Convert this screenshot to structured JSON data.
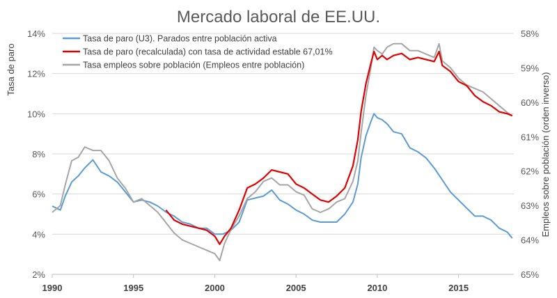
{
  "chart_data": {
    "type": "line",
    "title": "Mercado laboral de EE.UU.",
    "ylabel": "Tasa de paro",
    "y2label": "Empleos sobre población (orden inverso)",
    "xlim": [
      1990,
      2018.4
    ],
    "ylim": [
      2,
      14
    ],
    "y2lim": [
      65,
      58
    ],
    "y2_inverted": true,
    "grid": true,
    "legend_position": "top-left",
    "x_ticks": [
      "1990",
      "1995",
      "2000",
      "2005",
      "2010",
      "2015"
    ],
    "y_ticks": [
      "2%",
      "4%",
      "6%",
      "8%",
      "10%",
      "12%",
      "14%"
    ],
    "y2_ticks": [
      "58%",
      "59%",
      "60%",
      "61%",
      "62%",
      "63%",
      "64%",
      "65%"
    ],
    "series": [
      {
        "name": "Tasa de paro (U3). Parados entre población activa",
        "axis": "left",
        "color": "#5B9BD5",
        "points": [
          [
            1990.0,
            5.4
          ],
          [
            1990.5,
            5.2
          ],
          [
            1990.8,
            5.9
          ],
          [
            1991.2,
            6.6
          ],
          [
            1991.6,
            6.9
          ],
          [
            1992.0,
            7.3
          ],
          [
            1992.5,
            7.7
          ],
          [
            1993.0,
            7.1
          ],
          [
            1993.5,
            6.9
          ],
          [
            1994.0,
            6.6
          ],
          [
            1994.5,
            6.1
          ],
          [
            1995.0,
            5.6
          ],
          [
            1995.5,
            5.7
          ],
          [
            1996.0,
            5.6
          ],
          [
            1996.5,
            5.4
          ],
          [
            1997.0,
            5.1
          ],
          [
            1997.5,
            4.9
          ],
          [
            1998.0,
            4.6
          ],
          [
            1998.5,
            4.5
          ],
          [
            1999.0,
            4.3
          ],
          [
            1999.5,
            4.3
          ],
          [
            2000.0,
            4.0
          ],
          [
            2000.5,
            4.0
          ],
          [
            2001.0,
            4.2
          ],
          [
            2001.5,
            4.6
          ],
          [
            2002.0,
            5.7
          ],
          [
            2002.5,
            5.8
          ],
          [
            2003.0,
            5.9
          ],
          [
            2003.5,
            6.2
          ],
          [
            2004.0,
            5.7
          ],
          [
            2004.5,
            5.5
          ],
          [
            2005.0,
            5.2
          ],
          [
            2005.5,
            5.0
          ],
          [
            2006.0,
            4.7
          ],
          [
            2006.5,
            4.6
          ],
          [
            2007.0,
            4.6
          ],
          [
            2007.5,
            4.6
          ],
          [
            2008.0,
            5.0
          ],
          [
            2008.5,
            5.6
          ],
          [
            2008.8,
            6.5
          ],
          [
            2009.0,
            7.8
          ],
          [
            2009.3,
            8.9
          ],
          [
            2009.6,
            9.6
          ],
          [
            2009.8,
            10.0
          ],
          [
            2010.0,
            9.8
          ],
          [
            2010.3,
            9.7
          ],
          [
            2010.6,
            9.5
          ],
          [
            2011.0,
            9.1
          ],
          [
            2011.5,
            9.0
          ],
          [
            2012.0,
            8.3
          ],
          [
            2012.5,
            8.1
          ],
          [
            2013.0,
            7.8
          ],
          [
            2013.5,
            7.3
          ],
          [
            2014.0,
            6.7
          ],
          [
            2014.5,
            6.1
          ],
          [
            2015.0,
            5.7
          ],
          [
            2015.5,
            5.3
          ],
          [
            2016.0,
            4.9
          ],
          [
            2016.5,
            4.9
          ],
          [
            2017.0,
            4.7
          ],
          [
            2017.5,
            4.3
          ],
          [
            2018.0,
            4.1
          ],
          [
            2018.3,
            3.8
          ]
        ]
      },
      {
        "name": "Tasa de paro (recalculada) con tasa de actividad estable 67,01%",
        "axis": "left",
        "color": "#E00000",
        "points": [
          [
            1997.0,
            5.2
          ],
          [
            1997.5,
            4.7
          ],
          [
            1998.0,
            4.5
          ],
          [
            1998.5,
            4.4
          ],
          [
            1999.0,
            4.3
          ],
          [
            1999.5,
            4.2
          ],
          [
            2000.0,
            3.9
          ],
          [
            2000.3,
            3.5
          ],
          [
            2000.6,
            3.9
          ],
          [
            2001.0,
            4.3
          ],
          [
            2001.5,
            5.2
          ],
          [
            2002.0,
            6.3
          ],
          [
            2002.5,
            6.5
          ],
          [
            2003.0,
            6.8
          ],
          [
            2003.5,
            7.2
          ],
          [
            2004.0,
            7.1
          ],
          [
            2004.5,
            7.0
          ],
          [
            2005.0,
            6.5
          ],
          [
            2005.5,
            6.3
          ],
          [
            2006.0,
            6.0
          ],
          [
            2006.5,
            5.7
          ],
          [
            2007.0,
            5.6
          ],
          [
            2007.5,
            5.9
          ],
          [
            2008.0,
            6.3
          ],
          [
            2008.5,
            7.4
          ],
          [
            2008.8,
            8.7
          ],
          [
            2009.0,
            10.1
          ],
          [
            2009.3,
            11.5
          ],
          [
            2009.6,
            12.5
          ],
          [
            2009.8,
            13.1
          ],
          [
            2010.0,
            12.7
          ],
          [
            2010.3,
            12.9
          ],
          [
            2010.6,
            12.7
          ],
          [
            2011.0,
            12.9
          ],
          [
            2011.5,
            13.0
          ],
          [
            2012.0,
            12.7
          ],
          [
            2012.5,
            12.8
          ],
          [
            2013.0,
            12.7
          ],
          [
            2013.5,
            12.6
          ],
          [
            2013.8,
            13.1
          ],
          [
            2014.0,
            12.4
          ],
          [
            2014.5,
            12.1
          ],
          [
            2015.0,
            11.6
          ],
          [
            2015.5,
            11.4
          ],
          [
            2016.0,
            10.9
          ],
          [
            2016.5,
            10.6
          ],
          [
            2017.0,
            10.4
          ],
          [
            2017.5,
            10.1
          ],
          [
            2018.0,
            10.0
          ],
          [
            2018.3,
            9.9
          ]
        ]
      },
      {
        "name": "Tasa empleos sobre población (Empleos entre población)",
        "axis": "right",
        "color": "#A5A5A5",
        "points": [
          [
            1990.0,
            63.2
          ],
          [
            1990.5,
            63.0
          ],
          [
            1990.8,
            62.4
          ],
          [
            1991.2,
            61.7
          ],
          [
            1991.6,
            61.6
          ],
          [
            1992.0,
            61.3
          ],
          [
            1992.5,
            61.4
          ],
          [
            1993.0,
            61.4
          ],
          [
            1993.5,
            61.7
          ],
          [
            1994.0,
            62.2
          ],
          [
            1994.5,
            62.5
          ],
          [
            1995.0,
            62.9
          ],
          [
            1995.5,
            62.8
          ],
          [
            1996.0,
            63.0
          ],
          [
            1996.5,
            63.2
          ],
          [
            1997.0,
            63.5
          ],
          [
            1997.5,
            63.8
          ],
          [
            1998.0,
            64.0
          ],
          [
            1998.5,
            64.1
          ],
          [
            1999.0,
            64.2
          ],
          [
            1999.5,
            64.3
          ],
          [
            2000.0,
            64.4
          ],
          [
            2000.3,
            64.6
          ],
          [
            2000.6,
            64.1
          ],
          [
            2001.0,
            63.7
          ],
          [
            2001.5,
            63.3
          ],
          [
            2002.0,
            62.8
          ],
          [
            2002.5,
            62.6
          ],
          [
            2003.0,
            62.3
          ],
          [
            2003.5,
            62.2
          ],
          [
            2004.0,
            62.4
          ],
          [
            2004.5,
            62.4
          ],
          [
            2005.0,
            62.6
          ],
          [
            2005.5,
            62.7
          ],
          [
            2006.0,
            63.1
          ],
          [
            2006.5,
            63.2
          ],
          [
            2007.0,
            63.1
          ],
          [
            2007.5,
            62.9
          ],
          [
            2008.0,
            62.8
          ],
          [
            2008.5,
            62.3
          ],
          [
            2008.8,
            61.7
          ],
          [
            2009.0,
            60.9
          ],
          [
            2009.3,
            59.8
          ],
          [
            2009.6,
            59.0
          ],
          [
            2009.8,
            58.4
          ],
          [
            2010.0,
            58.5
          ],
          [
            2010.3,
            58.6
          ],
          [
            2010.6,
            58.4
          ],
          [
            2011.0,
            58.3
          ],
          [
            2011.5,
            58.3
          ],
          [
            2012.0,
            58.5
          ],
          [
            2012.5,
            58.5
          ],
          [
            2013.0,
            58.6
          ],
          [
            2013.5,
            58.7
          ],
          [
            2013.8,
            58.3
          ],
          [
            2014.0,
            58.8
          ],
          [
            2014.5,
            59.0
          ],
          [
            2015.0,
            59.3
          ],
          [
            2015.5,
            59.5
          ],
          [
            2016.0,
            59.6
          ],
          [
            2016.5,
            59.7
          ],
          [
            2017.0,
            59.9
          ],
          [
            2017.5,
            60.1
          ],
          [
            2018.0,
            60.3
          ],
          [
            2018.3,
            60.4
          ]
        ]
      }
    ]
  }
}
